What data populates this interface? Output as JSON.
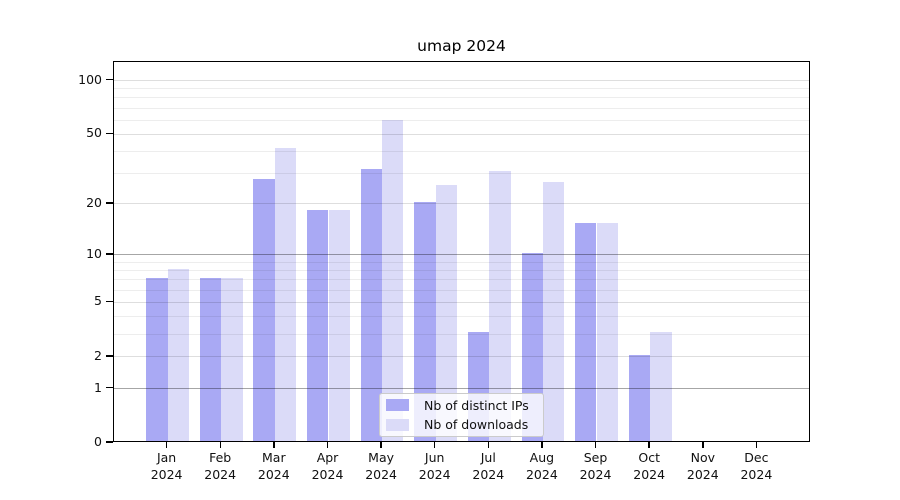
{
  "chart_data": {
    "type": "bar",
    "title": "umap 2024",
    "categories": [
      "Jan",
      "Feb",
      "Mar",
      "Apr",
      "May",
      "Jun",
      "Jul",
      "Aug",
      "Sep",
      "Oct",
      "Nov",
      "Dec"
    ],
    "x_tick_year": "2024",
    "series": [
      {
        "name": "Nb of distinct IPs",
        "color": "#a9a9f4",
        "values": [
          7,
          7,
          27,
          18,
          31,
          20,
          3,
          10,
          15,
          2,
          0,
          0
        ]
      },
      {
        "name": "Nb of downloads",
        "color": "#dbdbf8",
        "values": [
          8,
          7,
          41,
          18,
          59,
          25,
          30,
          26,
          15,
          3,
          0,
          0
        ]
      }
    ],
    "yscale": "log1p",
    "ylim": [
      0,
      127
    ],
    "y_ticks": [
      0,
      1,
      2,
      5,
      10,
      20,
      50,
      100
    ],
    "y_dark_gridlines": [
      1,
      10
    ],
    "y_mid_gridlines": [
      2,
      5,
      20,
      50,
      100
    ],
    "y_minor_gridlines": [
      3,
      4,
      6,
      7,
      8,
      9,
      30,
      40,
      60,
      70,
      80,
      90
    ],
    "grid": true,
    "legend_position": "lower center inside axes",
    "colors": {
      "axis": "#000000",
      "grid_dark": "rgba(0,0,0,0.35)",
      "grid_mid": "rgba(0,0,0,0.13)",
      "grid_minor": "rgba(0,0,0,0.07)"
    }
  }
}
